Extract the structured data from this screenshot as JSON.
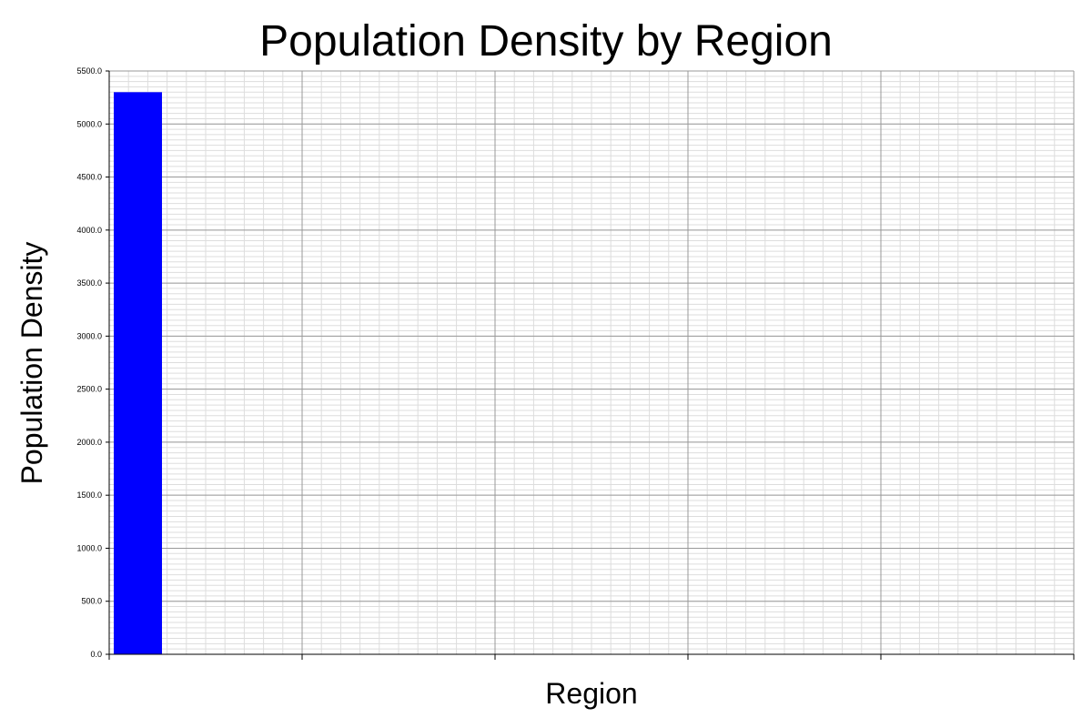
{
  "chart_data": {
    "type": "bar",
    "title": "Population Density by Region",
    "xlabel": "Region",
    "ylabel": "Population Density",
    "categories": [
      ""
    ],
    "values": [
      5300
    ],
    "ylim": [
      0,
      5500
    ],
    "xlim_categories": 5,
    "y_ticks": [
      "0.0",
      "500.0",
      "1000.0",
      "1500.0",
      "2000.0",
      "2500.0",
      "3000.0",
      "3500.0",
      "4000.0",
      "4500.0",
      "5000.0",
      "5500.0"
    ],
    "grid": true,
    "legend": "none",
    "colors": {
      "bar": "#0000ff",
      "major_grid": "#999999",
      "minor_grid": "#dddddd",
      "axis": "#000000"
    }
  }
}
